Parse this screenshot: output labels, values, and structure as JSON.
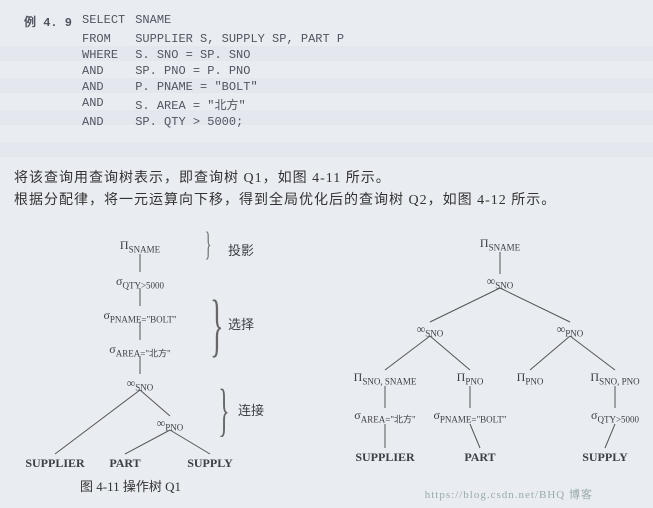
{
  "example_label": "例 4. 9",
  "sql": {
    "rows": [
      {
        "kw": "SELECT",
        "expr": "SNAME"
      },
      {
        "kw": "FROM",
        "expr": "SUPPLIER S, SUPPLY SP, PART P"
      },
      {
        "kw": "WHERE",
        "expr": "S. SNO = SP. SNO"
      },
      {
        "kw": "AND",
        "expr": "SP. PNO = P. PNO"
      },
      {
        "kw": "AND",
        "expr": "P. PNAME = \"BOLT\""
      },
      {
        "kw": "AND",
        "expr": "S. AREA = \"北方\""
      },
      {
        "kw": "AND",
        "expr": "SP. QTY > 5000;"
      }
    ]
  },
  "text1": "将该查询用查询树表示，即查询树 Q1，如图 4-11 所示。",
  "text2": "根据分配律，将一元运算向下移，得到全局优化后的查询树 Q2，如图 4-12 所示。",
  "q1": {
    "n1": "Π<sub>SNAME</sub>",
    "n2": "σ<sub>QTY&gt;5000</sub>",
    "n3": "σ<sub>PNAME=\"BOLT\"</sub>",
    "n4": "σ<sub>AREA=\"北方\"</sub>",
    "n5": "∞<sub>SNO</sub>",
    "n6": "∞<sub>PNO</sub>",
    "l1": "SUPPLIER",
    "l2": "PART",
    "l3": "SUPPLY",
    "b1": "投影",
    "b2": "选择",
    "b3": "连接",
    "caption": "图 4-11  操作树 Q1"
  },
  "q2": {
    "n1": "Π<sub>SNAME</sub>",
    "n2": "∞<sub>SNO</sub>",
    "n3": "∞<sub>SNO</sub>",
    "n4": "∞<sub>PNO</sub>",
    "n5": "Π<sub>SNO, SNAME</sub>",
    "n6": "Π<sub>PNO</sub>",
    "n7": "Π<sub>SNO, PNO</sub>",
    "n8": "σ<sub>AREA=\"北方\"</sub>",
    "n9": "σ<sub>PNAME=\"BOLT\"</sub>",
    "n10": "σ<sub>QTY&gt;5000</sub>",
    "l1": "SUPPLIER",
    "l2": "PART",
    "l3": "SUPPLY"
  },
  "watermark": "https://blog.csdn.net/BHQ  博客"
}
